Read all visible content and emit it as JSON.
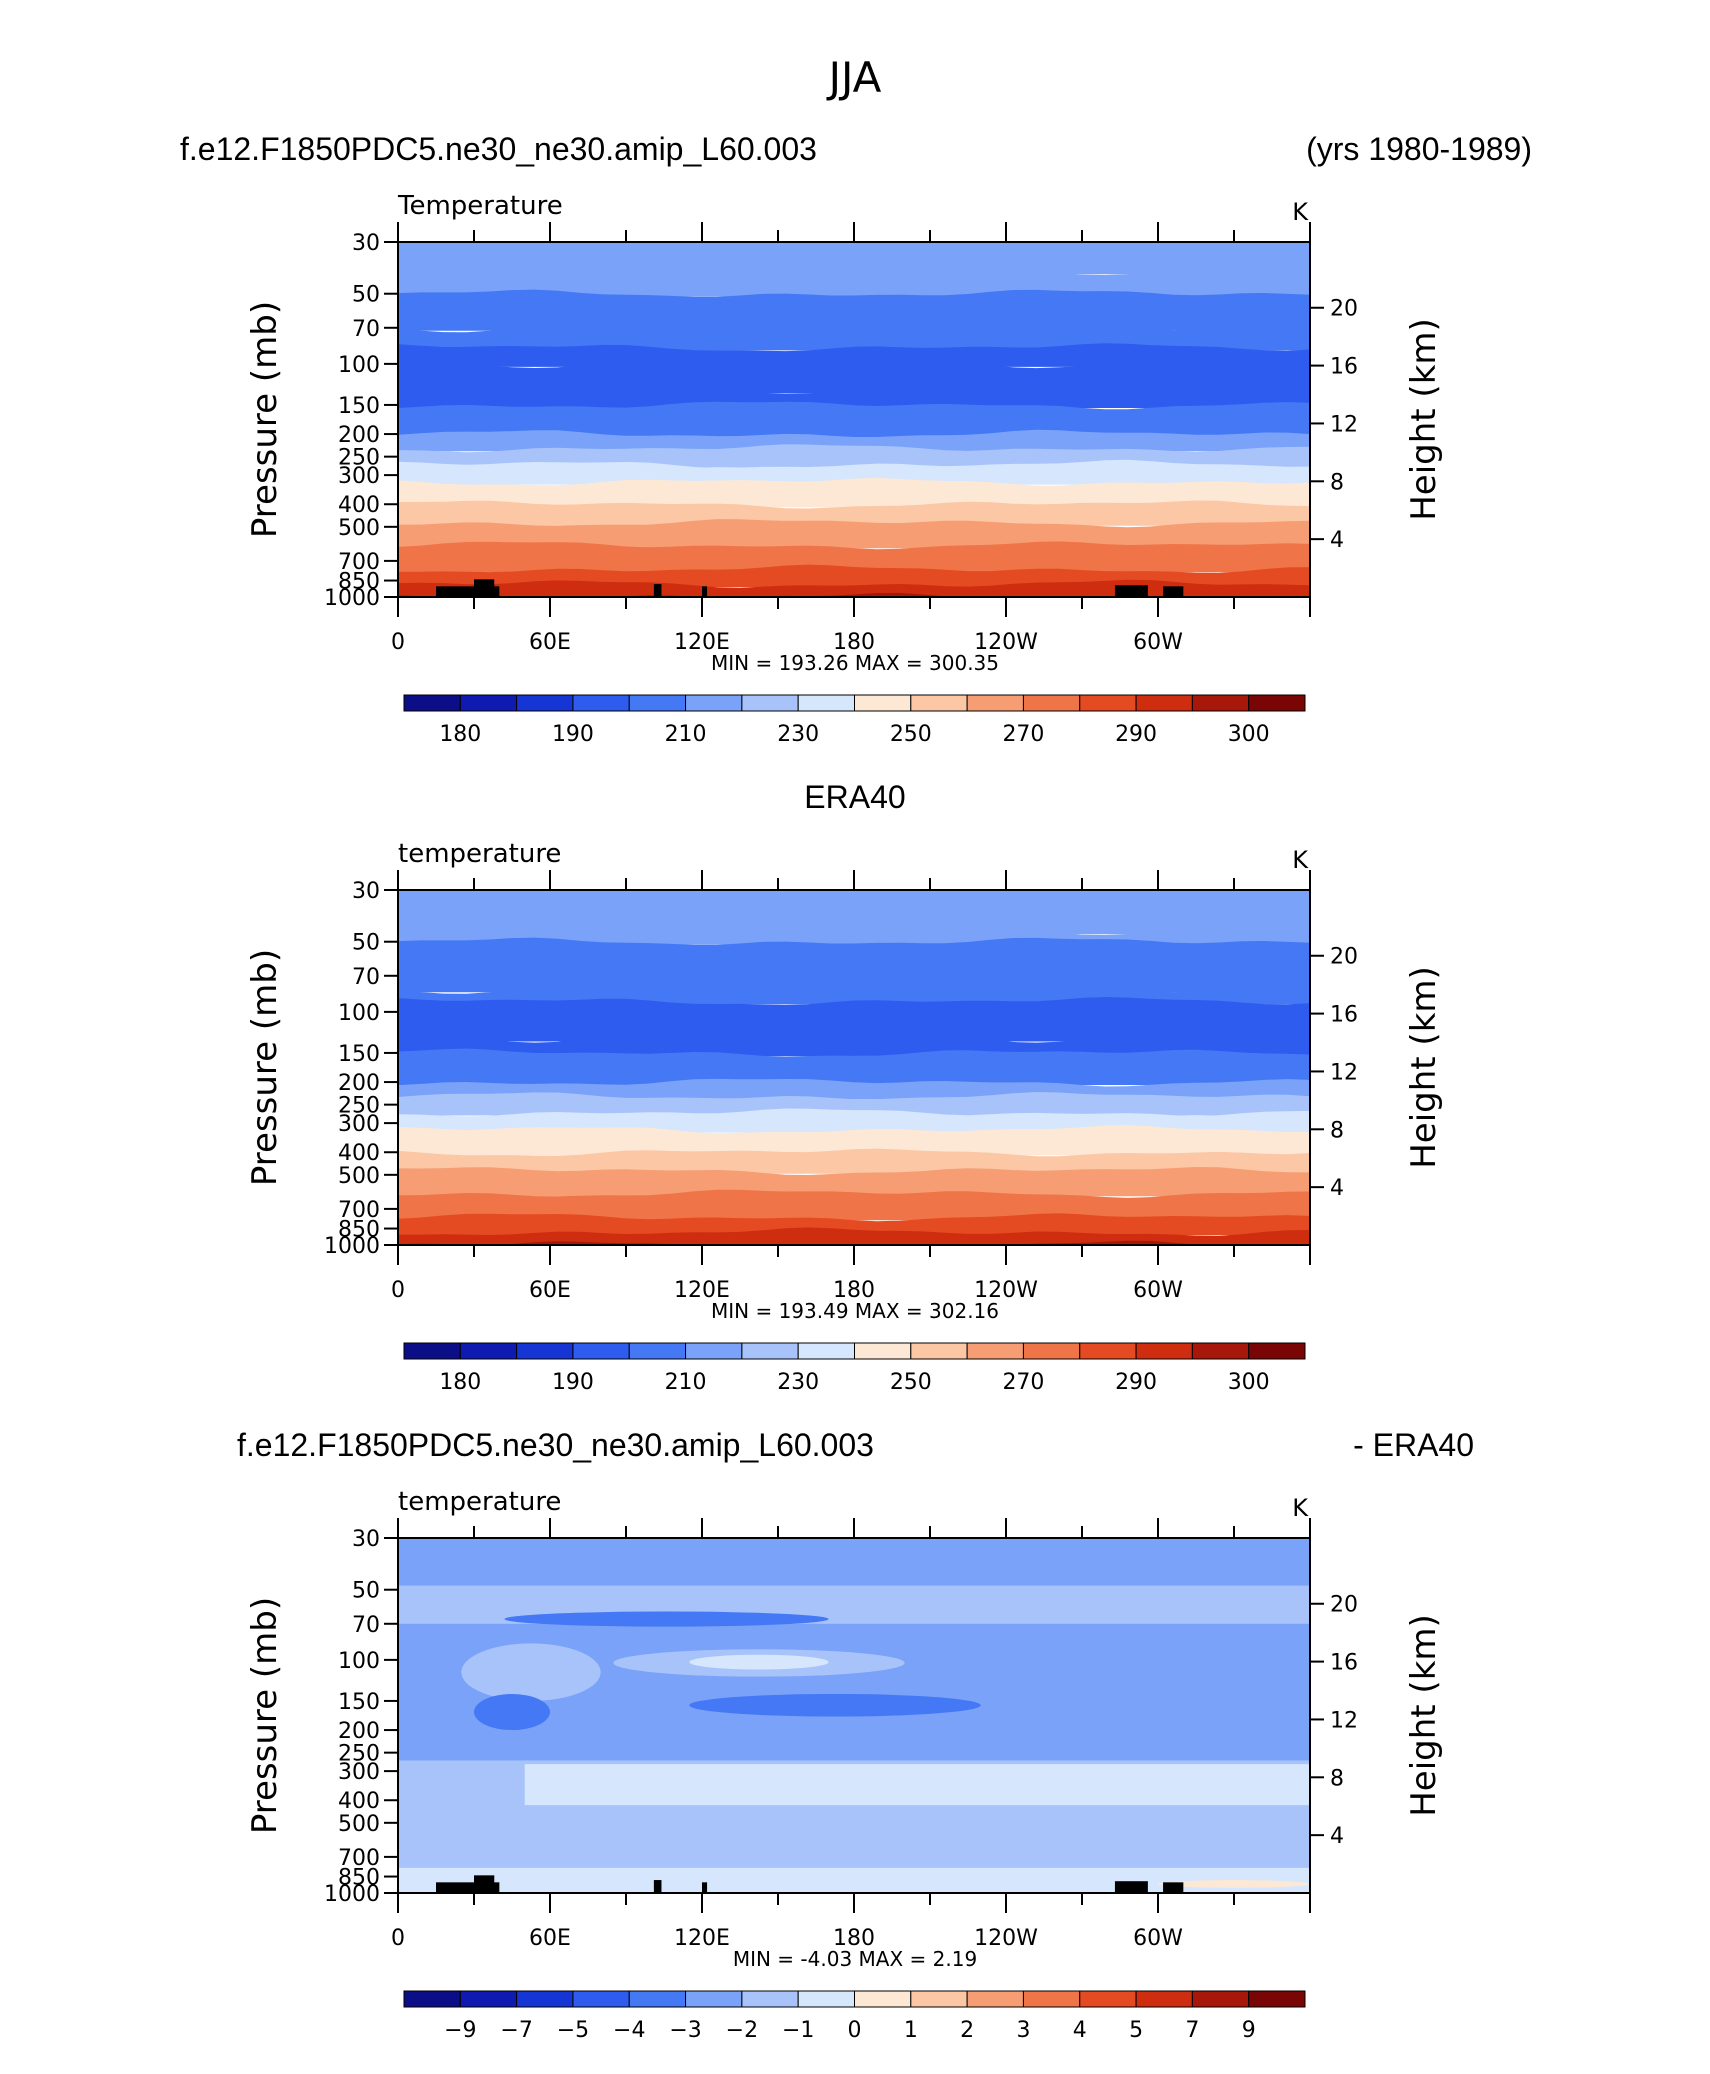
{
  "page": {
    "title": "JJA"
  },
  "panels": [
    {
      "header_left": "f.e12.F1850PDC5.ne30_ne30.amip_L60.003",
      "header_right": "(yrs 1980-1989)",
      "header_center": "",
      "var_label": "Temperature",
      "units": "K",
      "ylabel_left": "Pressure (mb)",
      "ylabel_right": "Height (km)",
      "stats": {
        "min_label": "MIN =",
        "min": "193.26",
        "max_label": "MAX =",
        "max": "300.35"
      },
      "colorbar_labels": [
        "180",
        "190",
        "210",
        "230",
        "250",
        "270",
        "290",
        "300"
      ]
    },
    {
      "header_left": "",
      "header_right": "",
      "header_center": "ERA40",
      "var_label": "temperature",
      "units": "K",
      "ylabel_left": "Pressure (mb)",
      "ylabel_right": "Height (km)",
      "stats": {
        "min_label": "MIN =",
        "min": "193.49",
        "max_label": "MAX =",
        "max": "302.16"
      },
      "colorbar_labels": [
        "180",
        "190",
        "210",
        "230",
        "250",
        "270",
        "290",
        "300"
      ]
    },
    {
      "header_left": "f.e12.F1850PDC5.ne30_ne30.amip_L60.003",
      "header_right": "- ERA40",
      "header_center": "",
      "var_label": "temperature",
      "units": "K",
      "ylabel_left": "Pressure (mb)",
      "ylabel_right": "Height (km)",
      "stats": {
        "min_label": "MIN =",
        "min": "-4.03",
        "max_label": "MAX =",
        "max": "2.19"
      },
      "colorbar_labels": [
        "−9",
        "−7",
        "−5",
        "−4",
        "−3",
        "−2",
        "−1",
        "0",
        "1",
        "2",
        "3",
        "4",
        "5",
        "7",
        "9"
      ]
    }
  ],
  "chart_data": [
    {
      "type": "heatmap",
      "title": "Temperature",
      "units": "K",
      "x_ticks": [
        "0",
        "60E",
        "120E",
        "180",
        "120W",
        "60W"
      ],
      "y_ticks_left": [
        "30",
        "50",
        "70",
        "100",
        "150",
        "200",
        "250",
        "300",
        "400",
        "500",
        "700",
        "850",
        "1000"
      ],
      "y_ticks_right": [
        "20",
        "16",
        "12",
        "8",
        "4"
      ],
      "xlim": [
        0,
        360
      ],
      "ylim": [
        1000,
        30
      ],
      "y_scale": "log",
      "contour_levels": [
        180,
        185,
        190,
        200,
        210,
        220,
        230,
        240,
        250,
        260,
        270,
        280,
        290,
        295,
        300
      ],
      "band_values_by_pressure": [
        [
          30,
          215
        ],
        [
          40,
          215
        ],
        [
          50,
          205
        ],
        [
          70,
          205
        ],
        [
          85,
          195
        ],
        [
          100,
          195
        ],
        [
          130,
          195
        ],
        [
          150,
          205
        ],
        [
          200,
          215
        ],
        [
          230,
          225
        ],
        [
          270,
          235
        ],
        [
          320,
          245
        ],
        [
          400,
          255
        ],
        [
          480,
          265
        ],
        [
          600,
          275
        ],
        [
          760,
          285
        ],
        [
          880,
          292
        ],
        [
          1000,
          297
        ]
      ],
      "min": 193.26,
      "max": 300.35
    },
    {
      "type": "heatmap",
      "title": "temperature",
      "units": "K",
      "x_ticks": [
        "0",
        "60E",
        "120E",
        "180",
        "120W",
        "60W"
      ],
      "y_ticks_left": [
        "30",
        "50",
        "70",
        "100",
        "150",
        "200",
        "250",
        "300",
        "400",
        "500",
        "700",
        "850",
        "1000"
      ],
      "y_ticks_right": [
        "20",
        "16",
        "12",
        "8",
        "4"
      ],
      "xlim": [
        0,
        360
      ],
      "ylim": [
        1000,
        30
      ],
      "y_scale": "log",
      "contour_levels": [
        180,
        185,
        190,
        200,
        210,
        220,
        230,
        240,
        250,
        260,
        270,
        280,
        290,
        295,
        300
      ],
      "band_values_by_pressure": [
        [
          30,
          215
        ],
        [
          45,
          215
        ],
        [
          50,
          205
        ],
        [
          80,
          205
        ],
        [
          90,
          195
        ],
        [
          130,
          195
        ],
        [
          150,
          205
        ],
        [
          200,
          215
        ],
        [
          230,
          225
        ],
        [
          270,
          235
        ],
        [
          320,
          245
        ],
        [
          400,
          255
        ],
        [
          480,
          265
        ],
        [
          600,
          275
        ],
        [
          760,
          285
        ],
        [
          880,
          292
        ],
        [
          1000,
          297
        ]
      ],
      "min": 193.49,
      "max": 302.16
    },
    {
      "type": "heatmap",
      "title": "temperature",
      "units": "K",
      "x_ticks": [
        "0",
        "60E",
        "120E",
        "180",
        "120W",
        "60W"
      ],
      "y_ticks_left": [
        "30",
        "50",
        "70",
        "100",
        "150",
        "200",
        "250",
        "300",
        "400",
        "500",
        "700",
        "850",
        "1000"
      ],
      "y_ticks_right": [
        "20",
        "16",
        "12",
        "8",
        "4"
      ],
      "xlim": [
        0,
        360
      ],
      "ylim": [
        1000,
        30
      ],
      "y_scale": "log",
      "contour_levels": [
        -9,
        -7,
        -5,
        -4,
        -3,
        -2,
        -1,
        0,
        1,
        2,
        3,
        4,
        5,
        7,
        9
      ],
      "background_value": -2.5,
      "min": -4.03,
      "max": 2.19
    }
  ],
  "colors": {
    "temperature_scale": [
      "#0b0e87",
      "#0f1bb0",
      "#1536d4",
      "#2d5cef",
      "#4478f5",
      "#7aa2f8",
      "#a7c3fa",
      "#d5e6fd",
      "#fde8d6",
      "#fbc7a5",
      "#f69d74",
      "#ef7548",
      "#e54b22",
      "#cf2d10",
      "#a8180a",
      "#7a0505"
    ],
    "anomaly_scale": [
      "#0b0e87",
      "#0f1bb0",
      "#1536d4",
      "#2d5cef",
      "#4478f5",
      "#7aa2f8",
      "#a7c3fa",
      "#d5e6fd",
      "#fde8d6",
      "#fbc7a5",
      "#f69d74",
      "#ef7548",
      "#e54b22",
      "#cf2d10",
      "#a8180a",
      "#7a0505"
    ],
    "topography": "#000000"
  }
}
